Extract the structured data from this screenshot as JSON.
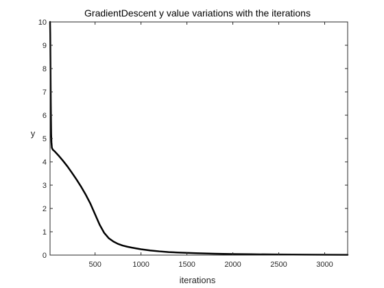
{
  "chart_data": {
    "type": "line",
    "title": "GradientDescent y value variations with the iterations",
    "xlabel": "iterations",
    "ylabel": "y",
    "xlim": [
      10,
      3250
    ],
    "ylim": [
      0,
      10
    ],
    "xticks": [
      500,
      1000,
      1500,
      2000,
      2500,
      3000
    ],
    "yticks": [
      0,
      1,
      2,
      3,
      4,
      5,
      6,
      7,
      8,
      9,
      10
    ],
    "grid": false,
    "box": true,
    "colors": {
      "line": "#000000",
      "axes": "#262626",
      "background": "#ffffff"
    },
    "series": [
      {
        "x": [
          10,
          12,
          14,
          16,
          18,
          20,
          22,
          25,
          30,
          40,
          60,
          100,
          150,
          200,
          250,
          300,
          350,
          400,
          450,
          500,
          550,
          600,
          650,
          700,
          750,
          800,
          850,
          900,
          1000,
          1100,
          1200,
          1300,
          1400,
          1500,
          1600,
          1800,
          2000,
          2200,
          2500,
          2800,
          3000,
          3250
        ],
        "y": [
          10,
          9.5,
          8.5,
          7.5,
          6.5,
          5.8,
          5.2,
          4.85,
          4.6,
          4.52,
          4.45,
          4.28,
          4.05,
          3.8,
          3.52,
          3.23,
          2.92,
          2.58,
          2.2,
          1.75,
          1.3,
          0.95,
          0.72,
          0.58,
          0.48,
          0.41,
          0.36,
          0.32,
          0.25,
          0.2,
          0.16,
          0.13,
          0.11,
          0.095,
          0.08,
          0.06,
          0.045,
          0.035,
          0.025,
          0.018,
          0.015,
          0.01
        ]
      }
    ]
  }
}
